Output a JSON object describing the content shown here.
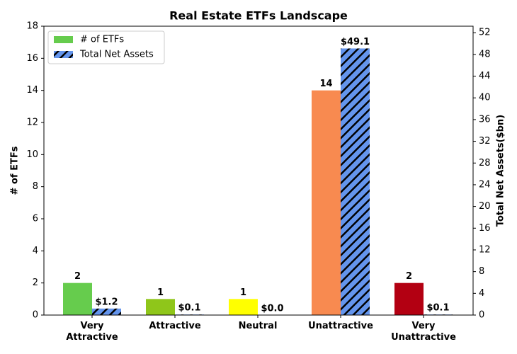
{
  "chart_data": {
    "type": "bar",
    "title": "Real Estate ETFs Landscape",
    "ylabel": "# of ETFs",
    "y2label": "Total Net Assets($bn)",
    "categories": [
      "Very\nAttractive",
      "Attractive",
      "Neutral",
      "Unattractive",
      "Very\nUnattractive"
    ],
    "series": [
      {
        "name": "# of ETFs",
        "colors": [
          "#66cc4d",
          "#8fc61a",
          "#ffff00",
          "#f88a50",
          "#b30012"
        ],
        "values": [
          2,
          1,
          1,
          14,
          2
        ]
      },
      {
        "name": "Total Net Assets",
        "color": "#6495ed",
        "hatch": "//",
        "axis": "y2",
        "values": [
          1.2,
          0.1,
          0.0,
          49.1,
          0.1
        ],
        "value_labels": [
          "$1.2",
          "$0.1",
          "$0.0",
          "$49.1",
          "$0.1"
        ]
      }
    ],
    "ylim": [
      0,
      18
    ],
    "yticks": [
      0,
      2,
      4,
      6,
      8,
      10,
      12,
      14,
      16,
      18
    ],
    "y2lim": [
      0,
      53.2
    ],
    "y2ticks": [
      0,
      4,
      8,
      12,
      16,
      20,
      24,
      28,
      32,
      36,
      40,
      44,
      48,
      52
    ],
    "legend": "upper left",
    "grid": false
  }
}
